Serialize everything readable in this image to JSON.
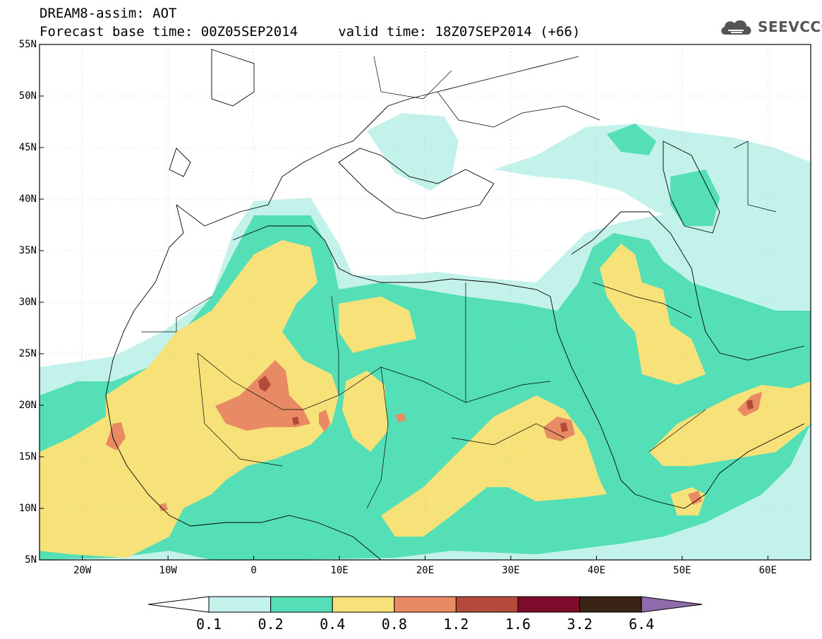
{
  "header": {
    "title_line1": "DREAM8-assim: AOT",
    "title_line2": "Forecast base time: 00Z05SEP2014     valid time: 18Z07SEP2014 (+66)"
  },
  "logo": {
    "text": "SEEVCCC",
    "icon": "cloud-icon"
  },
  "map": {
    "lat_labels": [
      "55N",
      "50N",
      "45N",
      "40N",
      "35N",
      "30N",
      "25N",
      "20N",
      "15N",
      "10N",
      "5N"
    ],
    "lon_labels": [
      "20W",
      "10W",
      "0",
      "10E",
      "20E",
      "30E",
      "40E",
      "50E",
      "60E"
    ]
  },
  "colorbar": {
    "labels": [
      "0.1",
      "0.2",
      "0.4",
      "0.8",
      "1.2",
      "1.6",
      "3.2",
      "6.4"
    ],
    "colors": [
      "#ffffff",
      "#c3f2ea",
      "#55dfb6",
      "#f7e27a",
      "#e88a63",
      "#b54a3a",
      "#7e0b2c",
      "#3a2415",
      "#8e6bab"
    ]
  },
  "field_colors": {
    "c1": "#c3f2ea",
    "c2": "#55dfb6",
    "c3": "#f7e27a",
    "c4": "#e88a63",
    "c5": "#b54a3a"
  }
}
